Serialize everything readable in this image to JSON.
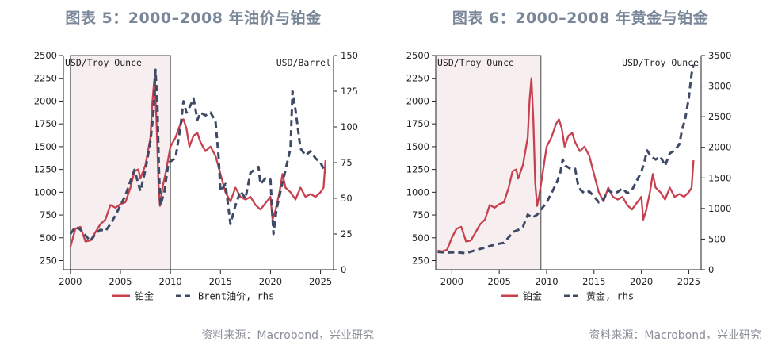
{
  "colors": {
    "platinum": "#c8404e",
    "secondary": "#3f4b66",
    "shade": "#f7eef0",
    "title": "#7a8799",
    "source": "#8a8f97"
  },
  "chart_data": [
    {
      "type": "line",
      "title": "图表 5：2000–2008 年油价与铂金",
      "source": "资料来源：Macrobond，兴业研究",
      "left_axis": {
        "unit": "USD/Troy Ounce",
        "ylim": [
          150,
          2500
        ],
        "ticks": [
          "2500",
          "2250",
          "2000",
          "1750",
          "1500",
          "1250",
          "1000",
          "750",
          "500",
          "250"
        ]
      },
      "right_axis": {
        "unit": "USD/Barrel",
        "ylim": [
          0,
          150
        ],
        "ticks": [
          "150",
          "125",
          "100",
          "75",
          "50",
          "25",
          "0"
        ]
      },
      "x_axis": {
        "xlim": [
          1999.3,
          2026.3
        ],
        "ticks": [
          "2000",
          "2005",
          "2010",
          "2015",
          "2020",
          "2025"
        ]
      },
      "shaded_range": [
        2000,
        2010
      ],
      "series": [
        {
          "name": "铂金",
          "legend_label": "铂金",
          "axis": "left",
          "style": "solid",
          "x": [
            2000.0,
            2000.5,
            2001.0,
            2001.5,
            2002.0,
            2002.5,
            2003.0,
            2003.5,
            2004.0,
            2004.5,
            2005.0,
            2005.5,
            2006.0,
            2006.4,
            2006.8,
            2007.0,
            2007.5,
            2008.0,
            2008.2,
            2008.4,
            2008.6,
            2008.8,
            2008.95,
            2009.2,
            2009.5,
            2010.0,
            2010.5,
            2011.0,
            2011.3,
            2011.6,
            2011.9,
            2012.3,
            2012.7,
            2013.0,
            2013.5,
            2014.0,
            2014.5,
            2015.0,
            2015.5,
            2016.0,
            2016.5,
            2017.0,
            2017.5,
            2018.0,
            2018.5,
            2019.0,
            2019.5,
            2020.0,
            2020.2,
            2020.5,
            2020.9,
            2021.2,
            2021.5,
            2022.0,
            2022.5,
            2023.0,
            2023.5,
            2024.0,
            2024.5,
            2025.0,
            2025.3,
            2025.5
          ],
          "values": [
            400,
            600,
            620,
            460,
            470,
            560,
            650,
            700,
            860,
            830,
            870,
            890,
            1050,
            1230,
            1250,
            1150,
            1300,
            1600,
            2000,
            2250,
            1800,
            1100,
            850,
            1050,
            1200,
            1500,
            1600,
            1750,
            1800,
            1700,
            1500,
            1620,
            1650,
            1550,
            1450,
            1500,
            1400,
            1200,
            1000,
            900,
            1050,
            950,
            920,
            950,
            860,
            810,
            880,
            950,
            700,
            800,
            1000,
            1200,
            1050,
            1000,
            920,
            1050,
            950,
            980,
            950,
            1000,
            1050,
            1350
          ]
        },
        {
          "name": "Brent油价",
          "legend_label": "Brent油价, rhs",
          "axis": "right",
          "style": "dashed",
          "x": [
            2000.0,
            2000.5,
            2001.0,
            2001.5,
            2002.0,
            2002.5,
            2003.0,
            2003.5,
            2004.0,
            2004.5,
            2005.0,
            2005.5,
            2006.0,
            2006.4,
            2006.8,
            2007.0,
            2007.5,
            2008.0,
            2008.3,
            2008.5,
            2008.7,
            2008.85,
            2009.0,
            2009.4,
            2009.8,
            2010.5,
            2011.0,
            2011.3,
            2011.6,
            2012.0,
            2012.3,
            2012.7,
            2013.0,
            2013.5,
            2014.0,
            2014.5,
            2014.8,
            2015.0,
            2015.5,
            2016.0,
            2016.5,
            2017.0,
            2017.5,
            2018.0,
            2018.8,
            2019.0,
            2019.5,
            2020.0,
            2020.3,
            2020.6,
            2021.0,
            2021.5,
            2022.0,
            2022.2,
            2022.5,
            2023.0,
            2023.5,
            2024.0,
            2024.5,
            2025.0,
            2025.5
          ],
          "values": [
            25,
            30,
            28,
            24,
            20,
            25,
            28,
            27,
            32,
            38,
            45,
            52,
            62,
            70,
            60,
            55,
            70,
            90,
            110,
            140,
            115,
            70,
            45,
            55,
            75,
            78,
            100,
            118,
            110,
            115,
            120,
            105,
            110,
            108,
            110,
            104,
            80,
            55,
            60,
            32,
            45,
            55,
            50,
            68,
            72,
            60,
            64,
            63,
            25,
            42,
            55,
            70,
            85,
            125,
            112,
            85,
            80,
            83,
            78,
            75,
            68
          ]
        }
      ],
      "legend_position": "bottom"
    },
    {
      "type": "line",
      "title": "图表 6：2000–2008 年黄金与铂金",
      "source": "资料来源：Macrobond，兴业研究",
      "left_axis": {
        "unit": "USD/Troy Ounce",
        "ylim": [
          150,
          2500
        ],
        "ticks": [
          "2500",
          "2250",
          "2000",
          "1750",
          "1500",
          "1250",
          "1000",
          "750",
          "500",
          "250"
        ]
      },
      "right_axis": {
        "unit": "USD/Troy Ounce",
        "ylim": [
          0,
          3500
        ],
        "ticks": [
          "3500",
          "3000",
          "2500",
          "2000",
          "1500",
          "1000",
          "500",
          "0"
        ]
      },
      "x_axis": {
        "xlim": [
          1998.3,
          2026.3
        ],
        "ticks": [
          "2000",
          "2005",
          "2010",
          "2015",
          "2020",
          "2025"
        ]
      },
      "shaded_range": [
        1998.3,
        2009.4
      ],
      "series": [
        {
          "name": "铂金",
          "legend_label": "铂金",
          "axis": "left",
          "style": "solid",
          "x": [
            1998.5,
            1999.0,
            1999.5,
            2000.0,
            2000.5,
            2001.0,
            2001.5,
            2002.0,
            2002.5,
            2003.0,
            2003.5,
            2004.0,
            2004.5,
            2005.0,
            2005.5,
            2006.0,
            2006.4,
            2006.8,
            2007.0,
            2007.5,
            2008.0,
            2008.2,
            2008.4,
            2008.6,
            2008.8,
            2009.0,
            2009.2,
            2009.5,
            2010.0,
            2010.5,
            2011.0,
            2011.3,
            2011.6,
            2011.9,
            2012.3,
            2012.7,
            2013.0,
            2013.5,
            2014.0,
            2014.5,
            2015.0,
            2015.5,
            2016.0,
            2016.5,
            2017.0,
            2017.5,
            2018.0,
            2018.5,
            2019.0,
            2019.5,
            2020.0,
            2020.2,
            2020.5,
            2020.9,
            2021.2,
            2021.5,
            2022.0,
            2022.5,
            2023.0,
            2023.5,
            2024.0,
            2024.5,
            2025.0,
            2025.3,
            2025.5
          ],
          "values": [
            360,
            350,
            370,
            500,
            600,
            620,
            460,
            470,
            560,
            650,
            700,
            860,
            830,
            870,
            890,
            1050,
            1230,
            1250,
            1150,
            1300,
            1600,
            2000,
            2250,
            1800,
            1100,
            850,
            950,
            1150,
            1500,
            1600,
            1750,
            1800,
            1700,
            1500,
            1620,
            1650,
            1550,
            1450,
            1500,
            1400,
            1200,
            1000,
            900,
            1050,
            950,
            920,
            950,
            860,
            810,
            880,
            950,
            700,
            800,
            1000,
            1200,
            1050,
            1000,
            920,
            1050,
            950,
            980,
            950,
            1000,
            1050,
            1350
          ]
        },
        {
          "name": "黄金",
          "legend_label": "黄金, rhs",
          "axis": "right",
          "style": "dashed",
          "x": [
            1998.5,
            1999.5,
            2000.5,
            2001.5,
            2002.5,
            2003.5,
            2004.5,
            2005.5,
            2006.5,
            2007.0,
            2007.5,
            2008.0,
            2008.5,
            2009.0,
            2009.5,
            2010.0,
            2010.5,
            2011.0,
            2011.4,
            2011.7,
            2012.0,
            2012.5,
            2013.0,
            2013.3,
            2013.6,
            2014.0,
            2014.5,
            2015.0,
            2015.5,
            2016.0,
            2016.5,
            2017.0,
            2017.5,
            2018.0,
            2018.5,
            2019.0,
            2019.5,
            2020.0,
            2020.3,
            2020.6,
            2021.0,
            2021.5,
            2022.0,
            2022.5,
            2023.0,
            2023.5,
            2024.0,
            2024.3,
            2024.6,
            2025.0,
            2025.3,
            2025.5
          ],
          "values": [
            290,
            280,
            285,
            270,
            320,
            360,
            410,
            440,
            620,
            650,
            700,
            900,
            850,
            900,
            1000,
            1100,
            1250,
            1400,
            1550,
            1800,
            1700,
            1650,
            1650,
            1400,
            1300,
            1250,
            1280,
            1200,
            1100,
            1150,
            1300,
            1250,
            1270,
            1330,
            1250,
            1300,
            1450,
            1600,
            1750,
            1950,
            1850,
            1800,
            1850,
            1700,
            1900,
            1950,
            2050,
            2300,
            2450,
            2800,
            3200,
            3350
          ]
        }
      ],
      "legend_position": "bottom"
    }
  ]
}
